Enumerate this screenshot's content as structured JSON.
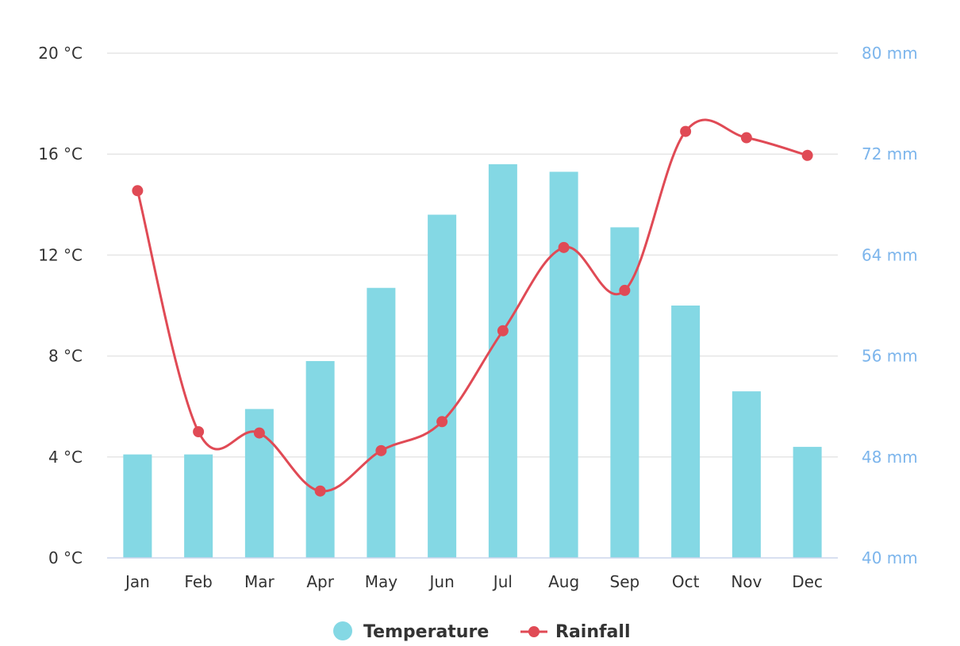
{
  "chart_data": {
    "type": "bar",
    "categories": [
      "Jan",
      "Feb",
      "Mar",
      "Apr",
      "May",
      "Jun",
      "Jul",
      "Aug",
      "Sep",
      "Oct",
      "Nov",
      "Dec"
    ],
    "series": [
      {
        "name": "Temperature",
        "type": "bar",
        "axis": "left",
        "values": [
          4.1,
          4.1,
          5.9,
          7.8,
          10.7,
          13.6,
          15.6,
          15.3,
          13.1,
          10.0,
          6.6,
          4.4
        ],
        "color": "#84d8e4"
      },
      {
        "name": "Rainfall",
        "type": "line",
        "axis": "right",
        "values": [
          69.1,
          50.0,
          49.9,
          45.3,
          48.5,
          50.8,
          58.0,
          64.6,
          61.2,
          73.8,
          73.3,
          71.9
        ],
        "color": "#e04a55"
      }
    ],
    "y_left": {
      "ticks": [
        0,
        4,
        8,
        12,
        16,
        20
      ],
      "tick_labels": [
        "0 °C",
        "4 °C",
        "8 °C",
        "12 °C",
        "16 °C",
        "20 °C"
      ],
      "range": [
        0,
        20
      ]
    },
    "y_right": {
      "ticks": [
        40,
        48,
        56,
        64,
        72,
        80
      ],
      "tick_labels": [
        "40 mm",
        "48 mm",
        "56 mm",
        "64 mm",
        "72 mm",
        "80 mm"
      ],
      "range": [
        40,
        80
      ],
      "color": "#7cb5ec"
    },
    "grid": true,
    "legend_position": "bottom-center"
  }
}
